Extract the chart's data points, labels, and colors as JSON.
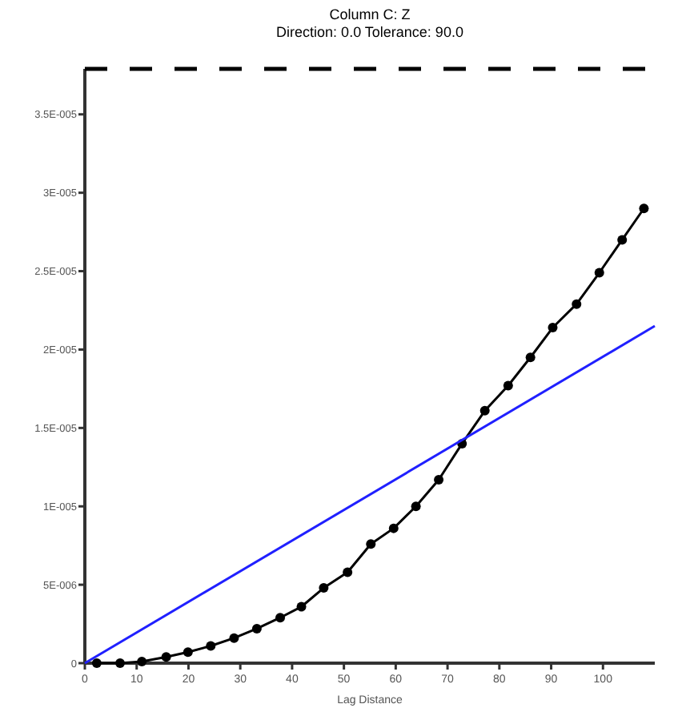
{
  "chart_data": {
    "type": "line",
    "title": "Column C:  Z",
    "subtitle": "Direction: 0.0   Tolerance: 90.0",
    "xlabel": "Lag Distance",
    "xlim": [
      0,
      110
    ],
    "xticks": [
      0,
      10,
      20,
      30,
      40,
      50,
      60,
      70,
      80,
      90,
      100
    ],
    "ylim": [
      0,
      3.79e-05
    ],
    "yticks": [
      0,
      {
        "value": 5e-06,
        "label": "5E-006"
      },
      {
        "value": 1e-05,
        "label": "1E-005"
      },
      {
        "value": 1.5e-05,
        "label": "1.5E-005"
      },
      {
        "value": 2e-05,
        "label": "2E-005"
      },
      {
        "value": 2.5e-05,
        "label": "2.5E-005"
      },
      {
        "value": 3e-05,
        "label": "3E-005"
      },
      {
        "value": 3.5e-05,
        "label": "3.5E-005"
      }
    ],
    "grid": false,
    "line_style": "solid",
    "ref_lines": [
      {
        "axis": "y",
        "value": 3.79e-05,
        "label": null,
        "color": "#000000",
        "line_style": "dashed"
      }
    ],
    "series": [
      {
        "color": "#000000",
        "marker": "circle",
        "x": [
          2.3,
          6.8,
          11,
          15.7,
          19.9,
          24.3,
          28.8,
          33.2,
          37.7,
          41.8,
          46.1,
          50.7,
          55.2,
          59.6,
          63.9,
          68.3,
          72.8,
          77.2,
          81.7,
          86,
          90.3,
          94.9,
          99.3,
          103.7,
          107.9
        ],
        "values": [
          0,
          0,
          1e-07,
          4e-07,
          7e-07,
          1.1e-06,
          1.6e-06,
          2.2e-06,
          2.9e-06,
          3.6e-06,
          4.8e-06,
          5.8e-06,
          7.6e-06,
          8.6e-06,
          1e-05,
          1.17e-05,
          1.4e-05,
          1.61e-05,
          1.77e-05,
          1.95e-05,
          2.14e-05,
          2.29e-05,
          2.49e-05,
          2.7e-05,
          2.9e-05
        ]
      },
      {
        "color": "#2020ff",
        "marker": "none",
        "x": [
          0,
          110
        ],
        "values": [
          0,
          2.15e-05
        ]
      }
    ]
  }
}
